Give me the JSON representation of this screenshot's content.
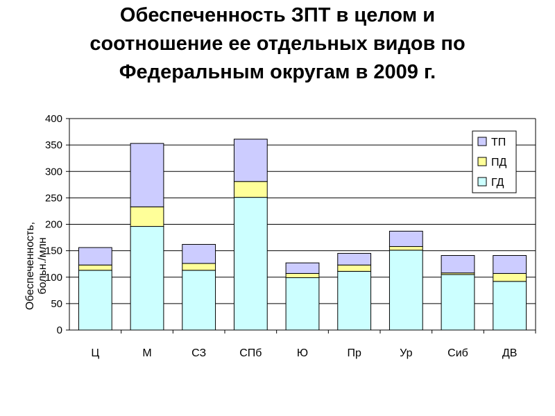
{
  "title_lines": [
    "Обеспеченность ЗПТ в целом и",
    "соотношение ее отдельных видов по",
    "Федеральным округам в 2009 г."
  ],
  "chart_data": {
    "type": "bar",
    "stacked": true,
    "title": "Обеспеченность ЗПТ в целом и соотношение ее отдельных видов по Федеральным округам в 2009 г.",
    "ylabel_lines": [
      "Обеспеченность,",
      "больн./млн"
    ],
    "ylim": [
      0,
      400
    ],
    "yticks": [
      0,
      50,
      100,
      150,
      200,
      250,
      300,
      350,
      400
    ],
    "grid": true,
    "legend_position": "top-right",
    "categories": [
      "Ц",
      "М",
      "СЗ",
      "СПб",
      "Ю",
      "Пр",
      "Ур",
      "Сиб",
      "ДВ"
    ],
    "series": [
      {
        "name": "ГД",
        "color": "#ccffff",
        "values": [
          113,
          196,
          113,
          251,
          99,
          111,
          151,
          105,
          92
        ]
      },
      {
        "name": "ПД",
        "color": "#ffff99",
        "values": [
          10,
          37,
          13,
          30,
          8,
          12,
          7,
          3,
          15
        ]
      },
      {
        "name": "ТП",
        "color": "#ccccff",
        "values": [
          33,
          120,
          36,
          80,
          20,
          22,
          29,
          33,
          34
        ]
      }
    ],
    "legend_order": [
      "ТП",
      "ПД",
      "ГД"
    ]
  }
}
